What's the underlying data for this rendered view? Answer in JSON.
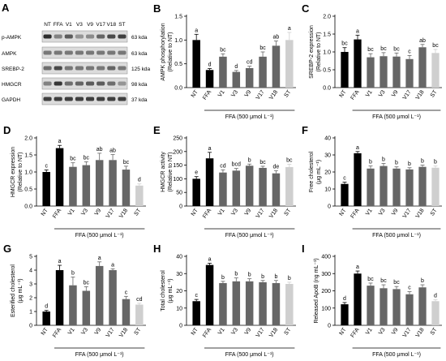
{
  "colors": {
    "NT": "#000000",
    "FFA": "#000000",
    "V": "#666666",
    "ST": "#cfcfcf"
  },
  "blot": {
    "letter": "A",
    "lanes": [
      "NT",
      "FFA",
      "V1",
      "V3",
      "V9",
      "V17",
      "V18",
      "ST"
    ],
    "rows": [
      {
        "name": "p-AMPK",
        "size": "63 kda",
        "intensity": [
          0.9,
          0.45,
          0.65,
          0.35,
          0.4,
          0.6,
          0.75,
          0.8
        ]
      },
      {
        "name": "AMPK",
        "size": "63 kda",
        "intensity": [
          0.5,
          0.5,
          0.5,
          0.5,
          0.5,
          0.5,
          0.5,
          0.5
        ]
      },
      {
        "name": "SREBP-2",
        "size": "125 kda",
        "intensity": [
          0.55,
          0.75,
          0.5,
          0.5,
          0.5,
          0.5,
          0.6,
          0.5
        ]
      },
      {
        "name": "HMGCR",
        "size": "98 kda",
        "intensity": [
          0.45,
          0.85,
          0.55,
          0.6,
          0.65,
          0.65,
          0.55,
          0.35
        ]
      },
      {
        "name": "GAPDH",
        "size": "37 kda",
        "intensity": [
          0.8,
          0.8,
          0.8,
          0.8,
          0.8,
          0.8,
          0.8,
          0.8
        ]
      }
    ]
  },
  "chart_data": [
    {
      "letter": "B",
      "type": "bar",
      "categories": [
        "NT",
        "FFA",
        "V1",
        "V3",
        "V9",
        "V17",
        "V18",
        "ST"
      ],
      "values": [
        1.0,
        0.37,
        0.65,
        0.33,
        0.41,
        0.65,
        0.88,
        1.0
      ],
      "errors": [
        0.12,
        0.03,
        0.06,
        0.03,
        0.04,
        0.1,
        0.1,
        0.16
      ],
      "sig": [
        "a",
        "d",
        "bc",
        "d",
        "cd",
        "bc",
        "ab",
        "a"
      ],
      "ylim": [
        0,
        1.5
      ],
      "yticks": [
        "0.0",
        "0.5",
        "1.0",
        "1.5"
      ],
      "ytick_values": [
        0,
        0.5,
        1.0,
        1.5
      ],
      "ylabel": [
        "AMPK phosphorylation",
        "(Relative to NT)"
      ],
      "xlabel": "FFA (500 μmol L⁻¹)"
    },
    {
      "letter": "C",
      "type": "bar",
      "categories": [
        "NT",
        "FFA",
        "V1",
        "V3",
        "V9",
        "V17",
        "V18",
        "ST"
      ],
      "values": [
        1.0,
        1.35,
        0.85,
        0.88,
        0.87,
        0.8,
        1.13,
        0.97
      ],
      "errors": [
        0.12,
        0.12,
        0.1,
        0.1,
        0.1,
        0.1,
        0.08,
        0.1
      ],
      "sig": [
        "bc",
        "a",
        "bc",
        "bc",
        "bc",
        "c",
        "ab",
        "bc"
      ],
      "ylim": [
        0,
        2.0
      ],
      "yticks": [
        "0.0",
        "0.5",
        "1.0",
        "1.5",
        "2.0"
      ],
      "ytick_values": [
        0,
        0.5,
        1.0,
        1.5,
        2.0
      ],
      "ylabel": [
        "SREBP-2 expression",
        "(Relative to NT)"
      ],
      "xlabel": "FFA (500 μmol L⁻¹)"
    },
    {
      "letter": "D",
      "type": "bar",
      "categories": [
        "NT",
        "FFA",
        "V1",
        "V3",
        "V9",
        "V17",
        "V18",
        "ST"
      ],
      "values": [
        1.0,
        1.7,
        1.15,
        1.2,
        1.35,
        1.35,
        1.07,
        0.6
      ],
      "errors": [
        0.06,
        0.08,
        0.12,
        0.1,
        0.2,
        0.16,
        0.1,
        0.05
      ],
      "sig": [
        "c",
        "a",
        "bc",
        "bc",
        "ab",
        "ab",
        "bc",
        "d"
      ],
      "ylim": [
        0,
        2.0
      ],
      "yticks": [
        "0.0",
        "0.5",
        "1.0",
        "1.5",
        "2.0"
      ],
      "ytick_values": [
        0,
        0.5,
        1.0,
        1.5,
        2.0
      ],
      "ylabel": [
        "HMGCR expression",
        "(Relative to NT)"
      ],
      "xlabel": "FFA (500 μmol L⁻¹)"
    },
    {
      "letter": "E",
      "type": "bar",
      "categories": [
        "NT",
        "FFA",
        "V1",
        "V3",
        "V9",
        "V17",
        "V18",
        "ST"
      ],
      "values": [
        100,
        175,
        123,
        130,
        148,
        140,
        120,
        143
      ],
      "errors": [
        8,
        22,
        10,
        8,
        6,
        6,
        10,
        10
      ],
      "sig": [
        "e",
        "a",
        "cd",
        "bcd",
        "b",
        "bc",
        "de",
        "bc"
      ],
      "ylim": [
        0,
        250
      ],
      "yticks": [
        "0",
        "50",
        "100",
        "150",
        "200",
        "250"
      ],
      "ytick_values": [
        0,
        50,
        100,
        150,
        200,
        250
      ],
      "ylabel": [
        "HMGCR activity",
        "(Relative to NT)"
      ],
      "xlabel": "FFA (500 μmol L⁻¹)"
    },
    {
      "letter": "F",
      "type": "bar",
      "categories": [
        "NT",
        "FFA",
        "V1",
        "V3",
        "V9",
        "V17",
        "V18",
        "ST"
      ],
      "values": [
        13,
        31,
        22,
        23.5,
        22,
        21.5,
        23,
        22.5
      ],
      "errors": [
        1,
        1,
        1.5,
        1.5,
        1,
        1,
        1,
        1
      ],
      "sig": [
        "c",
        "a",
        "b",
        "b",
        "b",
        "b",
        "b",
        "b"
      ],
      "ylim": [
        0,
        40
      ],
      "yticks": [
        "0",
        "10",
        "20",
        "30",
        "40"
      ],
      "ytick_values": [
        0,
        10,
        20,
        30,
        40
      ],
      "ylabel": [
        "Free cholesterol",
        "(μg mL⁻¹)"
      ],
      "xlabel": "FFA (500 μmol L⁻¹)"
    },
    {
      "letter": "G",
      "type": "bar",
      "categories": [
        "NT",
        "FFA",
        "V1",
        "V3",
        "V9",
        "V17",
        "V18",
        "ST"
      ],
      "values": [
        1.0,
        4.0,
        2.9,
        2.5,
        4.3,
        4.0,
        1.9,
        1.5
      ],
      "errors": [
        0.08,
        0.35,
        0.6,
        0.3,
        0.3,
        0.1,
        0.2,
        0.1
      ],
      "sig": [
        "d",
        "a",
        "b",
        "bc",
        "a",
        "a",
        "c",
        "cd"
      ],
      "ylim": [
        0,
        5
      ],
      "yticks": [
        "0",
        "1",
        "2",
        "3",
        "4",
        "5"
      ],
      "ytick_values": [
        0,
        1,
        2,
        3,
        4,
        5
      ],
      "ylabel": [
        "Esterified cholesterol",
        "(μg mL⁻¹)"
      ],
      "xlabel": "FFA (500 μmol L⁻¹)"
    },
    {
      "letter": "H",
      "type": "bar",
      "categories": [
        "NT",
        "FFA",
        "V1",
        "V3",
        "V9",
        "V17",
        "V18",
        "ST"
      ],
      "values": [
        14,
        35,
        24.5,
        25.5,
        25.5,
        25,
        24.5,
        24
      ],
      "errors": [
        1,
        1,
        1,
        2,
        1.5,
        1,
        1.5,
        1
      ],
      "sig": [
        "c",
        "a",
        "b",
        "b",
        "b",
        "b",
        "b",
        "b"
      ],
      "ylim": [
        0,
        40
      ],
      "yticks": [
        "0",
        "10",
        "20",
        "30",
        "40"
      ],
      "ytick_values": [
        0,
        10,
        20,
        30,
        40
      ],
      "ylabel": [
        "Total cholesterol",
        "(μg mL⁻¹)"
      ],
      "xlabel": "FFA (500 μmol L⁻¹)"
    },
    {
      "letter": "I",
      "type": "bar",
      "categories": [
        "NT",
        "FFA",
        "V1",
        "V3",
        "V9",
        "V17",
        "V18",
        "ST"
      ],
      "values": [
        122,
        300,
        230,
        215,
        210,
        180,
        220,
        140
      ],
      "errors": [
        10,
        15,
        15,
        20,
        15,
        15,
        15,
        8
      ],
      "sig": [
        "d",
        "a",
        "bc",
        "bc",
        "bc",
        "c",
        "b",
        "d"
      ],
      "ylim": [
        0,
        400
      ],
      "yticks": [
        "0",
        "100",
        "200",
        "300",
        "400"
      ],
      "ytick_values": [
        0,
        100,
        200,
        300,
        400
      ],
      "ylabel": [
        "Released ApoB (ng mL⁻¹)"
      ],
      "xlabel": "FFA (500 μmol L⁻¹)"
    }
  ]
}
